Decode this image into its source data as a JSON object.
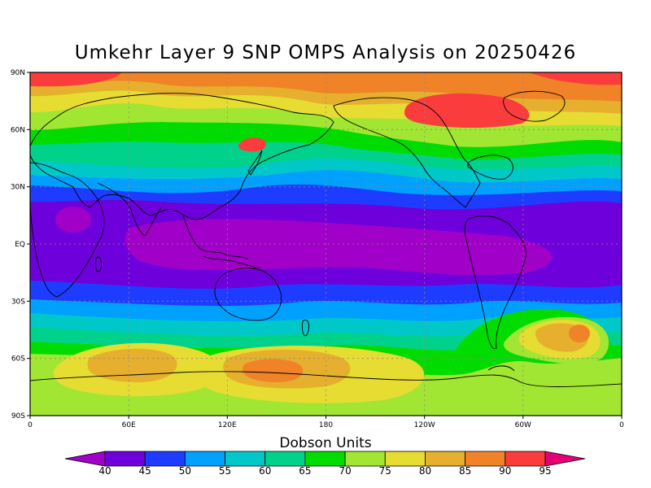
{
  "title": "Umkehr Layer 9 SNP OMPS Analysis on 20250426",
  "map": {
    "lat_labels": [
      "90N",
      "60N",
      "30N",
      "EQ",
      "30S",
      "60S",
      "90S"
    ],
    "lon_labels": [
      "0",
      "60E",
      "120E",
      "180",
      "120W",
      "60W",
      "0"
    ]
  },
  "colorbar": {
    "title": "Dobson Units",
    "tick_labels": [
      "40",
      "45",
      "50",
      "55",
      "60",
      "65",
      "70",
      "75",
      "80",
      "85",
      "90",
      "95"
    ],
    "colors": [
      "#a000c8",
      "#6e00dc",
      "#1e3cff",
      "#00a0ff",
      "#00c8c8",
      "#00d28c",
      "#00dc00",
      "#a0e632",
      "#e6dc32",
      "#e6af2d",
      "#f08228",
      "#fa3c3c",
      "#e60078"
    ]
  },
  "chart_data": {
    "type": "heatmap",
    "title": "Umkehr Layer 9 SNP OMPS Analysis on 20250426",
    "units": "Dobson Units",
    "xlim": [
      0,
      360
    ],
    "ylim": [
      -90,
      90
    ],
    "levels": [
      40,
      45,
      50,
      55,
      60,
      65,
      70,
      75,
      80,
      85,
      90,
      95
    ],
    "grid": true
  }
}
